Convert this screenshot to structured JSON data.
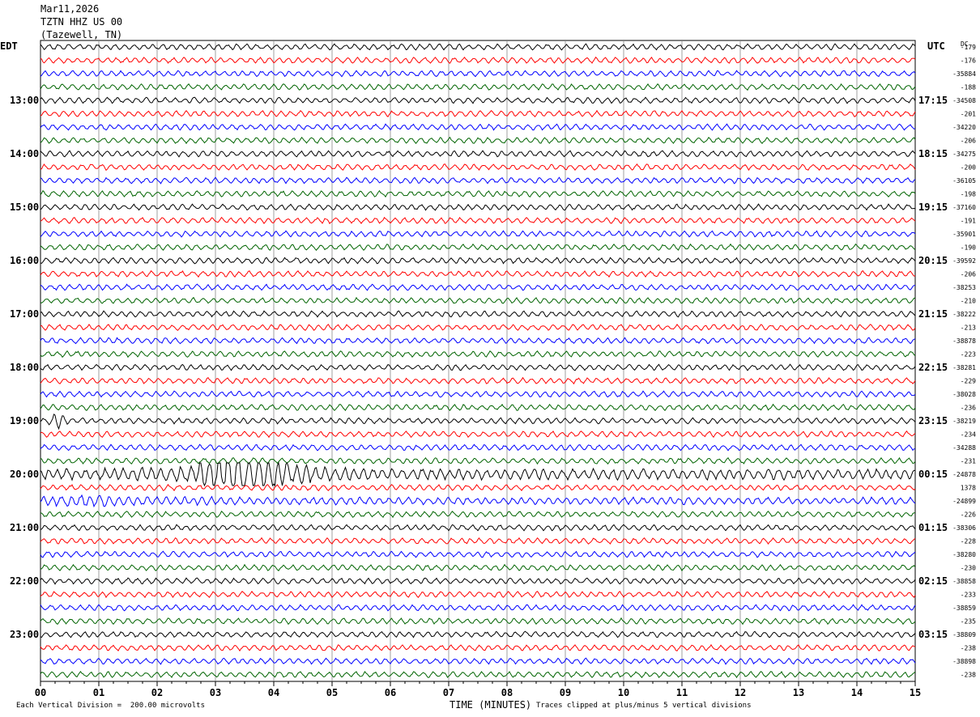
{
  "header": {
    "date": "Mar11,2026",
    "station": "TZTN HHZ US 00",
    "location": "(Tazewell, TN)"
  },
  "left_tz": "EDT",
  "right_tz": "UTC",
  "dc_label": "DC",
  "footer": {
    "scale_note": "Each Vertical Division =  200.00 microvolts",
    "xlabel": "TIME (MINUTES)",
    "clip_note": "Traces clipped at plus/minus 5 vertical divisions"
  },
  "colors": [
    "#000000",
    "#ff0000",
    "#0000ff",
    "#006400"
  ],
  "chart_data": {
    "type": "line",
    "xlabel": "TIME (MINUTES)",
    "xlim": [
      0,
      15
    ],
    "x_ticks": [
      "00",
      "01",
      "02",
      "03",
      "04",
      "05",
      "06",
      "07",
      "08",
      "09",
      "10",
      "11",
      "12",
      "13",
      "14",
      "15"
    ],
    "rows": 48,
    "left_hour_labels": [
      "13:00",
      "14:00",
      "15:00",
      "16:00",
      "17:00",
      "18:00",
      "19:00",
      "20:00",
      "21:00",
      "22:00",
      "23:00"
    ],
    "right_hour_labels": [
      "17:15",
      "18:15",
      "19:15",
      "20:15",
      "21:15",
      "22:15",
      "23:15",
      "00:15",
      "01:15",
      "02:15",
      "03:15"
    ],
    "dc_values": [
      "-179",
      "-176",
      "-35884",
      "-188",
      "-34508",
      "-201",
      "-34220",
      "-206",
      "-34275",
      "-200",
      "-36105",
      "-198",
      "-37160",
      "-191",
      "-35901",
      "-190",
      "-39592",
      "-206",
      "-38253",
      "-210",
      "-38222",
      "-213",
      "-38878",
      "-223",
      "-38281",
      "-229",
      "-38028",
      "-236",
      "-38219",
      "-234",
      "-34288",
      "-231",
      "-24878",
      "1378",
      "-24899",
      "-226",
      "-38306",
      "-228",
      "-38280",
      "-230",
      "-38858",
      "-233",
      "-38859",
      "-235",
      "-38809",
      "-238",
      "-38898",
      "-238"
    ],
    "events": [
      {
        "row": 28,
        "minute": 0.3,
        "note": "local spike"
      },
      {
        "row": 32,
        "minute": 3.5,
        "note": "largest burst"
      },
      {
        "row": 34,
        "minute": 0.8,
        "note": "noise burst"
      }
    ]
  }
}
